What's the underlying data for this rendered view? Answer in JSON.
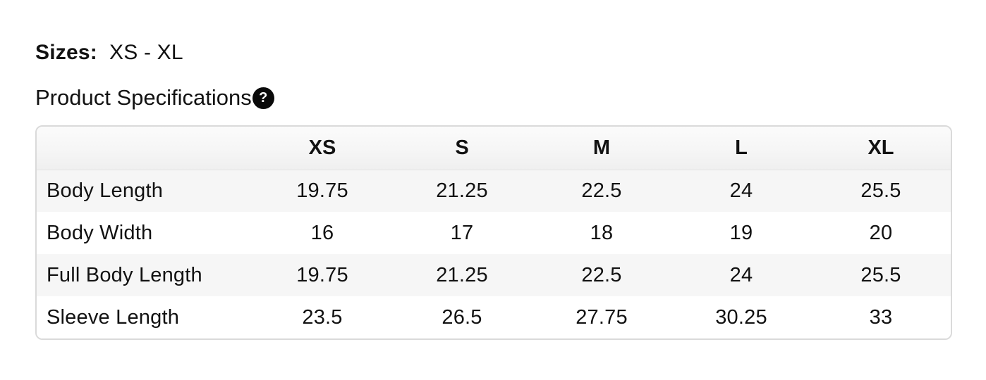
{
  "sizes": {
    "label": "Sizes:",
    "range": "XS - XL"
  },
  "spec": {
    "title": "Product Specifications",
    "help_icon": "question-mark-icon",
    "help_glyph": "?"
  },
  "table": {
    "columns": [
      "",
      "XS",
      "S",
      "M",
      "L",
      "XL"
    ],
    "rows": [
      {
        "label": "Body Length",
        "values": [
          "19.75",
          "21.25",
          "22.5",
          "24",
          "25.5"
        ]
      },
      {
        "label": "Body Width",
        "values": [
          "16",
          "17",
          "18",
          "19",
          "20"
        ]
      },
      {
        "label": "Full Body Length",
        "values": [
          "19.75",
          "21.25",
          "22.5",
          "24",
          "25.5"
        ]
      },
      {
        "label": "Sleeve Length",
        "values": [
          "23.5",
          "26.5",
          "27.75",
          "30.25",
          "33"
        ]
      }
    ]
  },
  "colors": {
    "text": "#121212",
    "table_border": "#dadada",
    "header_bg": "#f5f5f5",
    "stripe_bg": "#f6f6f6",
    "icon_bg": "#0a0a0a",
    "icon_fg": "#ffffff"
  }
}
